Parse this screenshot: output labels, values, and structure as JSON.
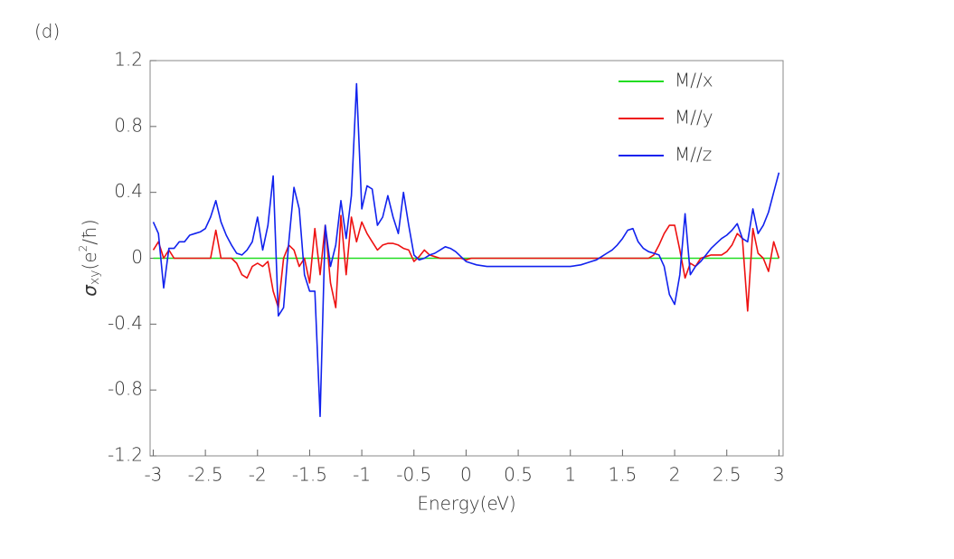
{
  "chart_data": {
    "type": "line",
    "panel_label": "(d)",
    "xlabel": "Energy(eV)",
    "ylabel": {
      "symbol": "σ",
      "subscript": "xy",
      "open": "(e",
      "superscript": "2",
      "close": "/ħ)"
    },
    "xlim": [
      -3.03,
      3.04
    ],
    "ylim": [
      -1.2,
      1.2
    ],
    "xticks": [
      -3,
      -2.5,
      -2,
      -1.5,
      -1,
      -0.5,
      0,
      0.5,
      1,
      1.5,
      2,
      2.5,
      3
    ],
    "yticks": [
      1.2,
      0.8,
      0.4,
      0,
      -0.4,
      -0.8,
      -1.2
    ],
    "legend": "top-right",
    "x": [
      -3,
      -2.95,
      -2.9,
      -2.85,
      -2.8,
      -2.75,
      -2.7,
      -2.65,
      -2.6,
      -2.55,
      -2.5,
      -2.45,
      -2.4,
      -2.35,
      -2.3,
      -2.25,
      -2.2,
      -2.15,
      -2.1,
      -2.05,
      -2,
      -1.95,
      -1.9,
      -1.85,
      -1.8,
      -1.75,
      -1.7,
      -1.65,
      -1.6,
      -1.55,
      -1.5,
      -1.45,
      -1.4,
      -1.35,
      -1.3,
      -1.25,
      -1.2,
      -1.15,
      -1.1,
      -1.05,
      -1,
      -0.95,
      -0.9,
      -0.85,
      -0.8,
      -0.75,
      -0.7,
      -0.65,
      -0.6,
      -0.55,
      -0.5,
      -0.45,
      -0.4,
      -0.35,
      -0.3,
      -0.25,
      -0.2,
      -0.15,
      -0.1,
      -0.05,
      0,
      0.05,
      0.1,
      0.15,
      0.2,
      0.25,
      0.3,
      0.35,
      0.4,
      0.45,
      0.5,
      0.55,
      0.6,
      0.65,
      0.7,
      0.75,
      0.8,
      0.85,
      0.9,
      0.95,
      1,
      1.05,
      1.1,
      1.15,
      1.2,
      1.25,
      1.3,
      1.35,
      1.4,
      1.45,
      1.5,
      1.55,
      1.6,
      1.65,
      1.7,
      1.75,
      1.8,
      1.85,
      1.9,
      1.95,
      2,
      2.05,
      2.1,
      2.15,
      2.2,
      2.25,
      2.3,
      2.35,
      2.4,
      2.45,
      2.5,
      2.55,
      2.6,
      2.65,
      2.7,
      2.75,
      2.8,
      2.85,
      2.9,
      2.95,
      3
    ],
    "series": [
      {
        "name": "M//x",
        "color": "#22dd22",
        "values": [
          0,
          0,
          0,
          0,
          0,
          0,
          0,
          0,
          0,
          0,
          0,
          0,
          0,
          0,
          0,
          0,
          0,
          0,
          0,
          0,
          0,
          0,
          0,
          0,
          0,
          0,
          0,
          0,
          0,
          0,
          0,
          0,
          0,
          0,
          0,
          0,
          0,
          0,
          0,
          0,
          0,
          0,
          0,
          0,
          0,
          0,
          0,
          0,
          0,
          0,
          0,
          0,
          0,
          0,
          0,
          0,
          0,
          0,
          0,
          0,
          0,
          0,
          0,
          0,
          0,
          0,
          0,
          0,
          0,
          0,
          0,
          0,
          0,
          0,
          0,
          0,
          0,
          0,
          0,
          0,
          0,
          0,
          0,
          0,
          0,
          0,
          0,
          0,
          0,
          0,
          0,
          0,
          0,
          0,
          0,
          0,
          0,
          0,
          0,
          0,
          0,
          0,
          0,
          0,
          0,
          0,
          0,
          0,
          0,
          0,
          0,
          0,
          0,
          0,
          0,
          0,
          0,
          0,
          0,
          0,
          0
        ]
      },
      {
        "name": "M//y",
        "color": "#ee1111",
        "values": [
          0.05,
          0.1,
          0,
          0.05,
          0,
          0,
          0,
          0,
          0,
          0,
          0,
          0,
          0.17,
          0,
          0,
          0,
          -0.03,
          -0.1,
          -0.12,
          -0.05,
          -0.03,
          -0.05,
          -0.02,
          -0.2,
          -0.3,
          0,
          0.08,
          0.05,
          -0.05,
          0,
          -0.15,
          0.18,
          -0.1,
          0.2,
          -0.15,
          -0.3,
          0.26,
          -0.1,
          0.25,
          0.1,
          0.22,
          0.15,
          0.1,
          0.05,
          0.08,
          0.09,
          0.09,
          0.08,
          0.06,
          0.05,
          -0.02,
          0.01,
          0.05,
          0.02,
          0.01,
          0,
          0,
          0,
          0,
          0,
          -0.01,
          0,
          0,
          0,
          0,
          0,
          0,
          0,
          0,
          0,
          0,
          0,
          0,
          0,
          0,
          0,
          0,
          0,
          0,
          0,
          0,
          0,
          0,
          0,
          0,
          0,
          0,
          0,
          0,
          0,
          0,
          0,
          0,
          0,
          0,
          0,
          0.02,
          0.08,
          0.15,
          0.2,
          0.2,
          0.05,
          -0.12,
          -0.03,
          -0.05,
          0,
          0.01,
          0.02,
          0.02,
          0.02,
          0.04,
          0.08,
          0.15,
          0.12,
          -0.32,
          0.18,
          0.03,
          0,
          -0.08,
          0.1,
          0
        ]
      },
      {
        "name": "M//z",
        "color": "#1122ee",
        "values": [
          0.22,
          0.15,
          -0.18,
          0.06,
          0.06,
          0.1,
          0.1,
          0.14,
          0.15,
          0.16,
          0.18,
          0.25,
          0.35,
          0.22,
          0.14,
          0.08,
          0.03,
          0.02,
          0.05,
          0.1,
          0.25,
          0.05,
          0.2,
          0.5,
          -0.35,
          -0.3,
          0.1,
          0.43,
          0.3,
          -0.1,
          -0.2,
          -0.2,
          -0.96,
          0.2,
          -0.05,
          0.08,
          0.35,
          0.12,
          0.38,
          1.06,
          0.3,
          0.44,
          0.42,
          0.2,
          0.25,
          0.38,
          0.25,
          0.15,
          0.4,
          0.2,
          0.02,
          -0.01,
          0,
          0.02,
          0.03,
          0.05,
          0.07,
          0.06,
          0.04,
          0.01,
          -0.02,
          -0.03,
          -0.04,
          -0.045,
          -0.05,
          -0.05,
          -0.05,
          -0.05,
          -0.05,
          -0.05,
          -0.05,
          -0.05,
          -0.05,
          -0.05,
          -0.05,
          -0.05,
          -0.05,
          -0.05,
          -0.05,
          -0.05,
          -0.05,
          -0.045,
          -0.04,
          -0.03,
          -0.02,
          -0.01,
          0.01,
          0.03,
          0.05,
          0.08,
          0.12,
          0.17,
          0.18,
          0.1,
          0.06,
          0.04,
          0.03,
          0.02,
          -0.05,
          -0.22,
          -0.28,
          -0.1,
          0.27,
          -0.1,
          -0.05,
          -0.02,
          0.02,
          0.06,
          0.09,
          0.12,
          0.14,
          0.17,
          0.21,
          0.12,
          0.1,
          0.3,
          0.15,
          0.2,
          0.28,
          0.4,
          0.52
        ]
      }
    ]
  }
}
